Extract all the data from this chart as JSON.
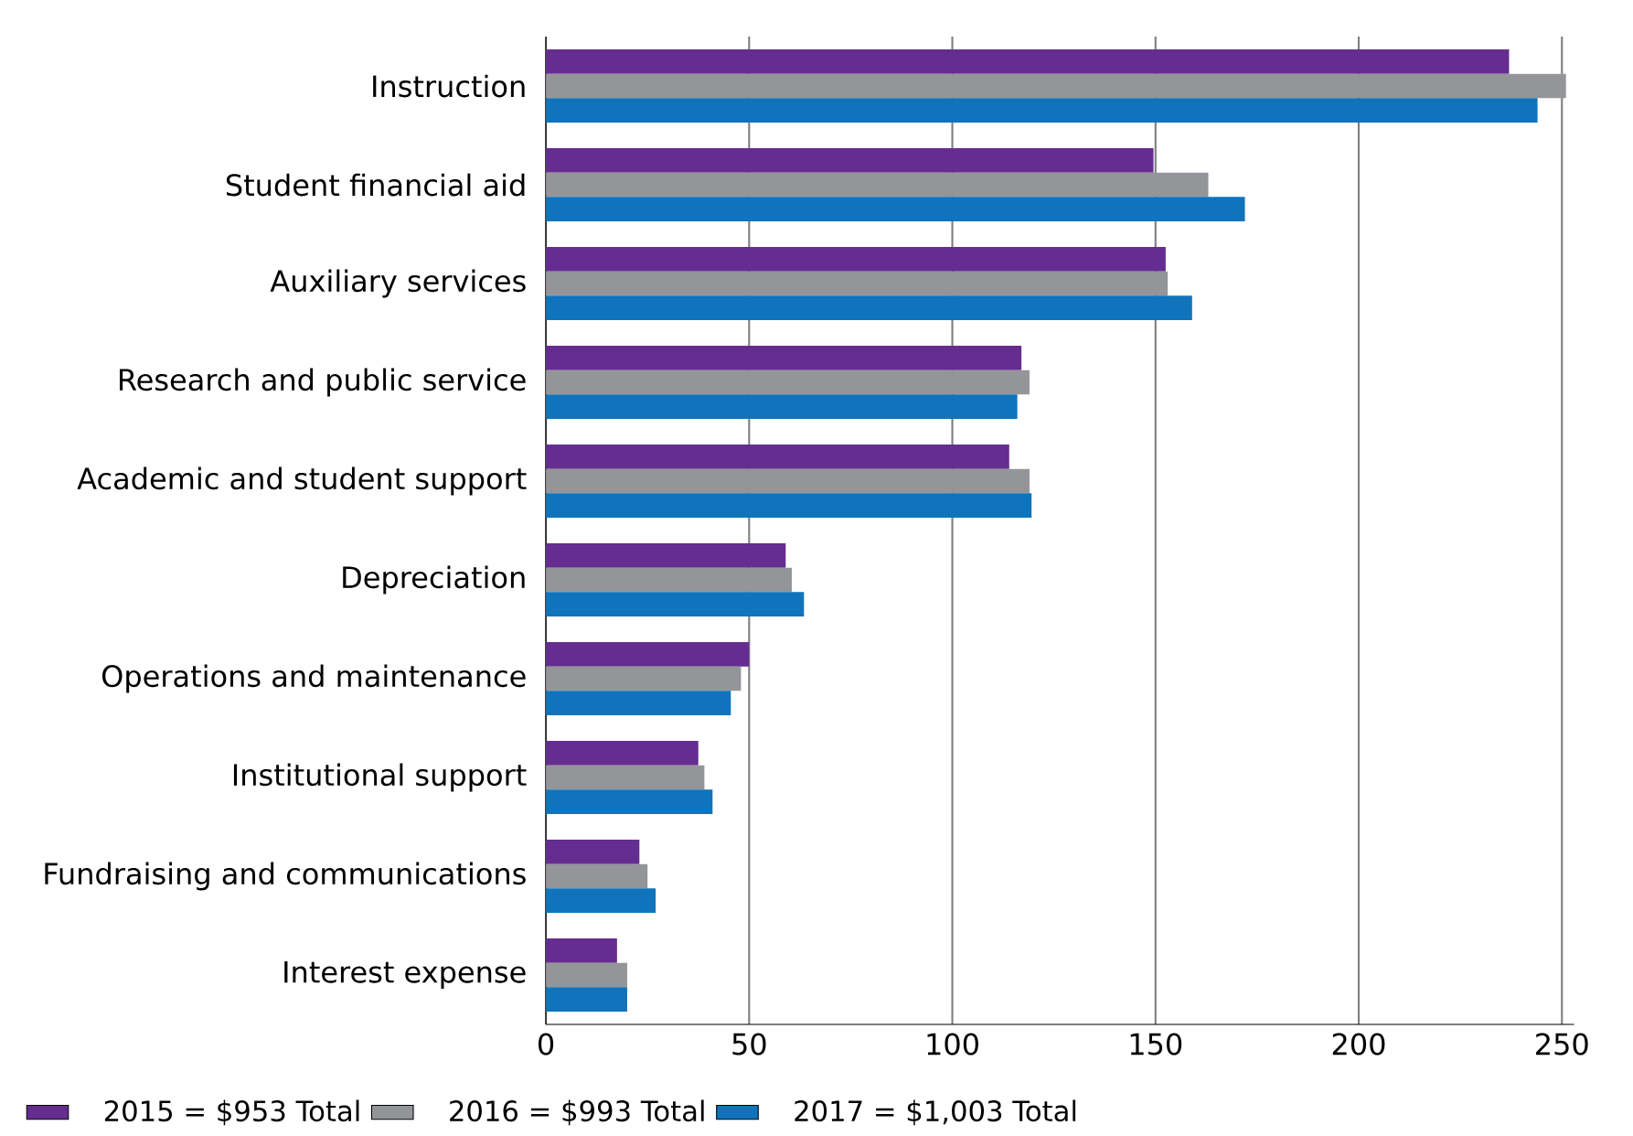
{
  "chart_data": {
    "type": "bar",
    "orientation": "horizontal",
    "categories": [
      "Instruction",
      "Student financial aid",
      "Auxiliary services",
      "Research and public service",
      "Academic and student support",
      "Depreciation",
      "Operations and maintenance",
      "Institutional support",
      "Fundraising and communications",
      "Interest expense"
    ],
    "series": [
      {
        "name": "2015 = $953 Total",
        "color": "#652d90",
        "values": [
          237,
          149.5,
          152.5,
          117,
          114,
          59,
          50,
          37.5,
          23,
          17.5
        ]
      },
      {
        "name": "2016 = $993 Total",
        "color": "#939598",
        "values": [
          251,
          163,
          153,
          119,
          119,
          60.5,
          48,
          39,
          25,
          20
        ]
      },
      {
        "name": "2017 = $1,003 Total",
        "color": "#0f74bc",
        "values": [
          244,
          172,
          159,
          116,
          119.5,
          63.5,
          45.5,
          41,
          27,
          20
        ]
      }
    ],
    "xlim": [
      0,
      253
    ],
    "xticks": [
      0,
      50,
      100,
      150,
      200,
      250
    ],
    "grid": "x",
    "legend": "bottom left"
  }
}
